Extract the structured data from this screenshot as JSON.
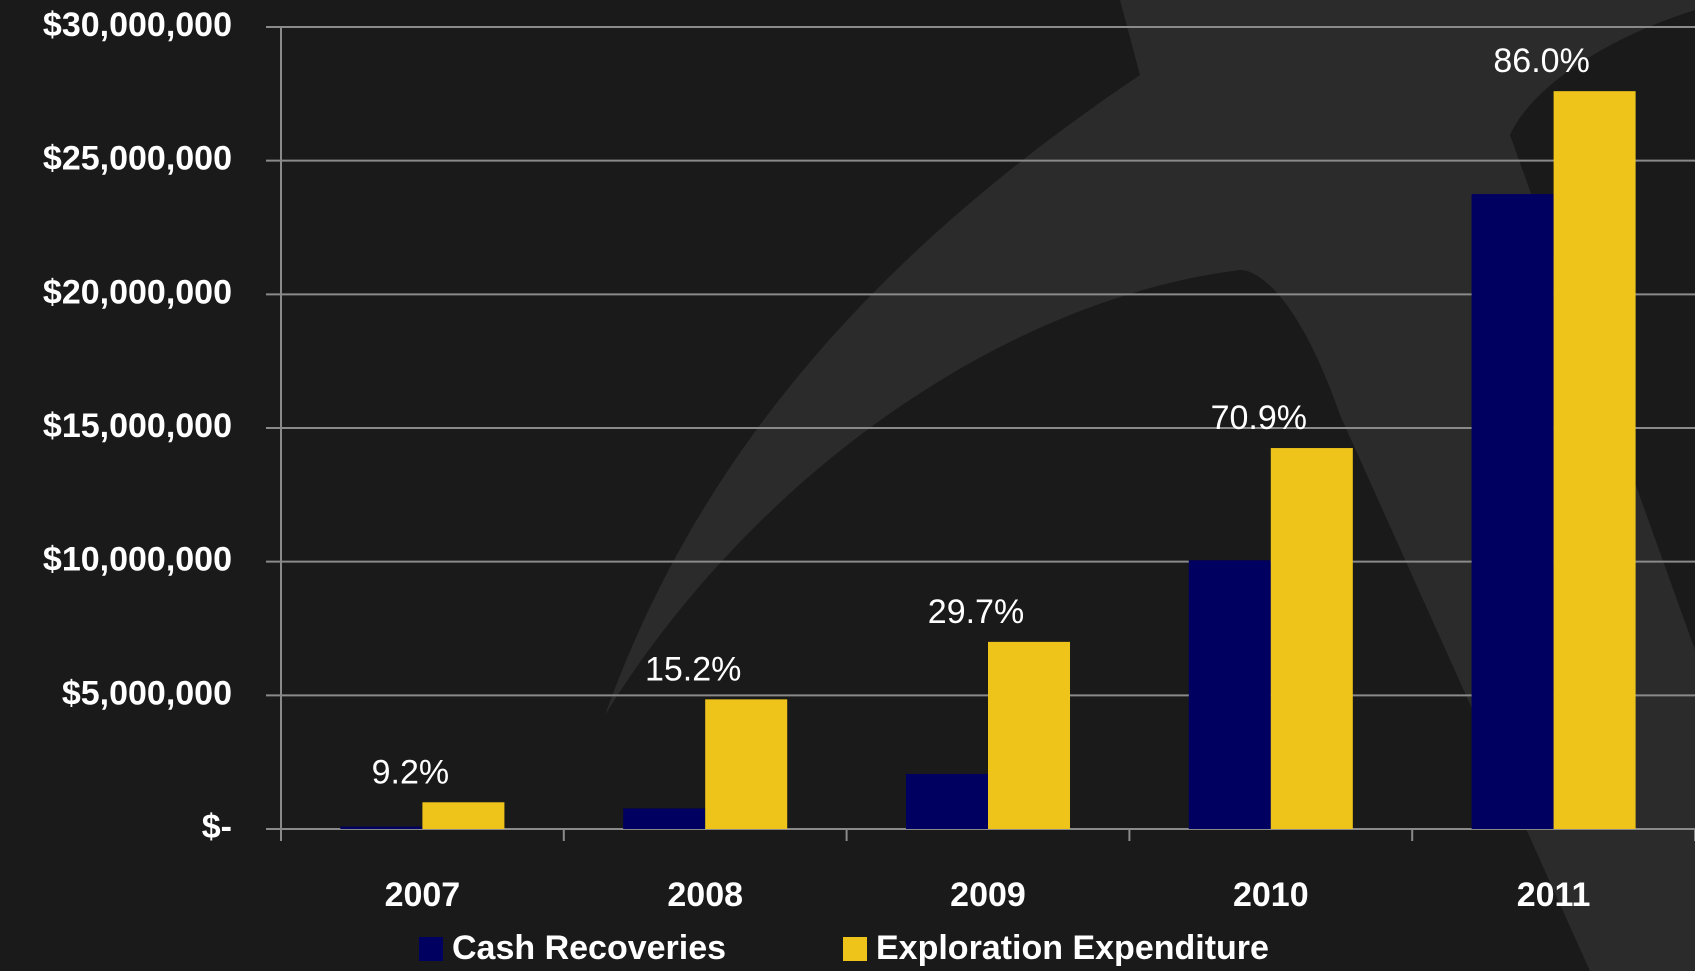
{
  "chart_data": {
    "type": "bar",
    "categories": [
      "2007",
      "2008",
      "2009",
      "2010",
      "2011"
    ],
    "series": [
      {
        "name": "Cash Recoveries",
        "color": "#000060",
        "values": [
          90000,
          770000,
          2060000,
          10050000,
          23750000
        ]
      },
      {
        "name": "Exploration Expenditure",
        "color": "#eec41a",
        "values": [
          1000000,
          4850000,
          7000000,
          14250000,
          27600000
        ]
      }
    ],
    "annotations": [
      "9.2%",
      "15.2%",
      "29.7%",
      "70.9%",
      "86.0%"
    ],
    "ylim": [
      0,
      30000000
    ],
    "yticks": [
      {
        "value": 0,
        "label": "$-"
      },
      {
        "value": 5000000,
        "label": "$5,000,000"
      },
      {
        "value": 10000000,
        "label": "$10,000,000"
      },
      {
        "value": 15000000,
        "label": "$15,000,000"
      },
      {
        "value": 20000000,
        "label": "$20,000,000"
      },
      {
        "value": 25000000,
        "label": "$25,000,000"
      },
      {
        "value": 30000000,
        "label": "$30,000,000"
      }
    ],
    "grid": true,
    "legend": "bottom"
  }
}
